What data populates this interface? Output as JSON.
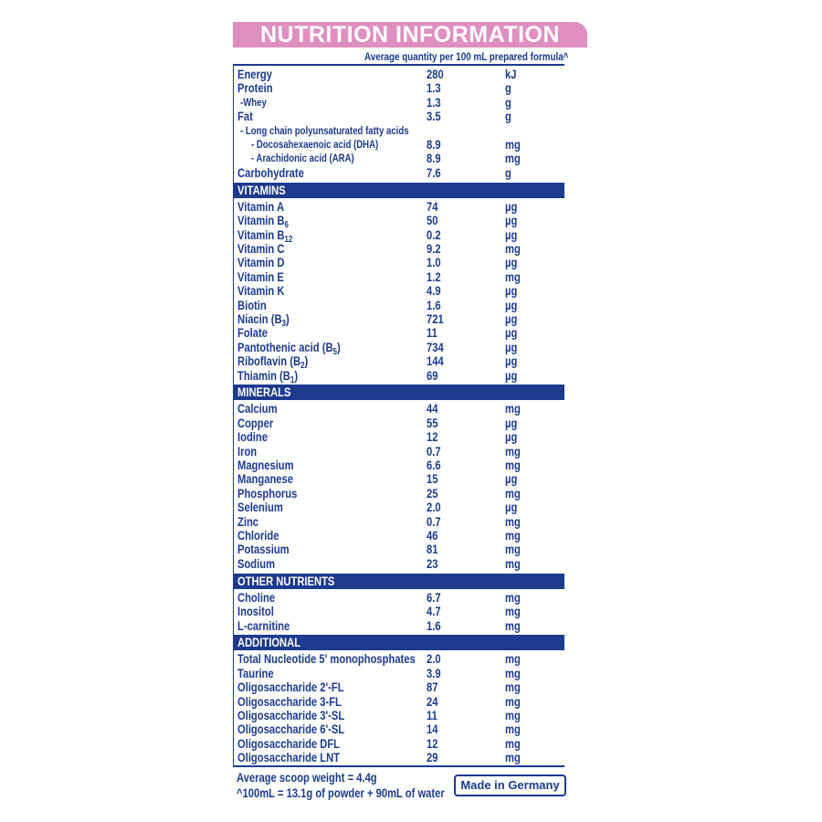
{
  "header": {
    "title": "NUTRITION INFORMATION",
    "subtitle": "Average quantity per 100 mL prepared formula^"
  },
  "sections": [
    {
      "rows": [
        {
          "name": "Energy",
          "amount": "280",
          "unit": "kJ"
        },
        {
          "name": "Protein",
          "amount": "1.3",
          "unit": "g"
        },
        {
          "name": "-Whey",
          "amount": "1.3",
          "unit": "g",
          "level": 1
        },
        {
          "name": "Fat",
          "amount": "3.5",
          "unit": "g"
        },
        {
          "name": "- Long chain polyunsaturated fatty acids",
          "level": 1
        },
        {
          "name": "- Docosahexaenoic acid (DHA)",
          "amount": "8.9",
          "unit": "mg",
          "level": 2
        },
        {
          "name": "- Arachidonic acid (ARA)",
          "amount": "8.9",
          "unit": "mg",
          "level": 2
        },
        {
          "name": "Carbohydrate",
          "amount": "7.6",
          "unit": "g"
        }
      ]
    },
    {
      "heading": "VITAMINS",
      "rows": [
        {
          "name": "Vitamin A",
          "amount": "74",
          "unit": "µg"
        },
        {
          "name": "Vitamin B",
          "sub": "6",
          "amount": "50",
          "unit": "µg"
        },
        {
          "name": "Vitamin B",
          "sub": "12",
          "amount": "0.2",
          "unit": "µg"
        },
        {
          "name": "Vitamin C",
          "amount": "9.2",
          "unit": "mg"
        },
        {
          "name": "Vitamin D",
          "amount": "1.0",
          "unit": "µg"
        },
        {
          "name": "Vitamin E",
          "amount": "1.2",
          "unit": "mg"
        },
        {
          "name": "Vitamin K",
          "amount": "4.9",
          "unit": "µg"
        },
        {
          "name": "Biotin",
          "amount": "1.6",
          "unit": "µg"
        },
        {
          "name": "Niacin (B",
          "sub": "3",
          "after": ")",
          "amount": "721",
          "unit": "µg"
        },
        {
          "name": "Folate",
          "amount": "11",
          "unit": "µg"
        },
        {
          "name": "Pantothenic acid (B",
          "sub": "5",
          "after": ")",
          "amount": "734",
          "unit": "µg"
        },
        {
          "name": "Riboflavin (B",
          "sub": "2",
          "after": ")",
          "amount": "144",
          "unit": "µg"
        },
        {
          "name": "Thiamin (B",
          "sub": "1",
          "after": ")",
          "amount": "69",
          "unit": "µg"
        }
      ]
    },
    {
      "heading": "MINERALS",
      "rows": [
        {
          "name": "Calcium",
          "amount": "44",
          "unit": "mg"
        },
        {
          "name": "Copper",
          "amount": "55",
          "unit": "µg"
        },
        {
          "name": "Iodine",
          "amount": "12",
          "unit": "µg"
        },
        {
          "name": "Iron",
          "amount": "0.7",
          "unit": "mg"
        },
        {
          "name": "Magnesium",
          "amount": "6.6",
          "unit": "mg"
        },
        {
          "name": "Manganese",
          "amount": "15",
          "unit": "µg"
        },
        {
          "name": "Phosphorus",
          "amount": "25",
          "unit": "mg"
        },
        {
          "name": "Selenium",
          "amount": "2.0",
          "unit": "µg"
        },
        {
          "name": "Zinc",
          "amount": "0.7",
          "unit": "mg"
        },
        {
          "name": "Chloride",
          "amount": "46",
          "unit": "mg"
        },
        {
          "name": "Potassium",
          "amount": "81",
          "unit": "mg"
        },
        {
          "name": "Sodium",
          "amount": "23",
          "unit": "mg"
        }
      ]
    },
    {
      "heading": "OTHER NUTRIENTS",
      "rows": [
        {
          "name": "Choline",
          "amount": "6.7",
          "unit": "mg"
        },
        {
          "name": "Inositol",
          "amount": "4.7",
          "unit": "mg"
        },
        {
          "name": "L-carnitine",
          "amount": "1.6",
          "unit": "mg"
        }
      ]
    },
    {
      "heading": "ADDITIONAL",
      "rows": [
        {
          "name": "Total Nucleotide 5' monophosphates",
          "amount": "2.0",
          "unit": "mg"
        },
        {
          "name": "Taurine",
          "amount": "3.9",
          "unit": "mg"
        },
        {
          "name": "Oligosaccharide 2'-FL",
          "amount": "87",
          "unit": "mg"
        },
        {
          "name": "Oligosaccharide 3-FL",
          "amount": "24",
          "unit": "mg"
        },
        {
          "name": "Oligosaccharide 3'-SL",
          "amount": "11",
          "unit": "mg"
        },
        {
          "name": "Oligosaccharide 6'-SL",
          "amount": "14",
          "unit": "mg"
        },
        {
          "name": "Oligosaccharide DFL",
          "amount": "12",
          "unit": "mg"
        },
        {
          "name": "Oligosaccharide LNT",
          "amount": "29",
          "unit": "mg"
        }
      ]
    }
  ],
  "footer": {
    "lines": [
      "Average scoop weight = 4.4g",
      "^100mL = 13.1g of powder + 90mL of water"
    ],
    "badge": "Made in Germany"
  }
}
